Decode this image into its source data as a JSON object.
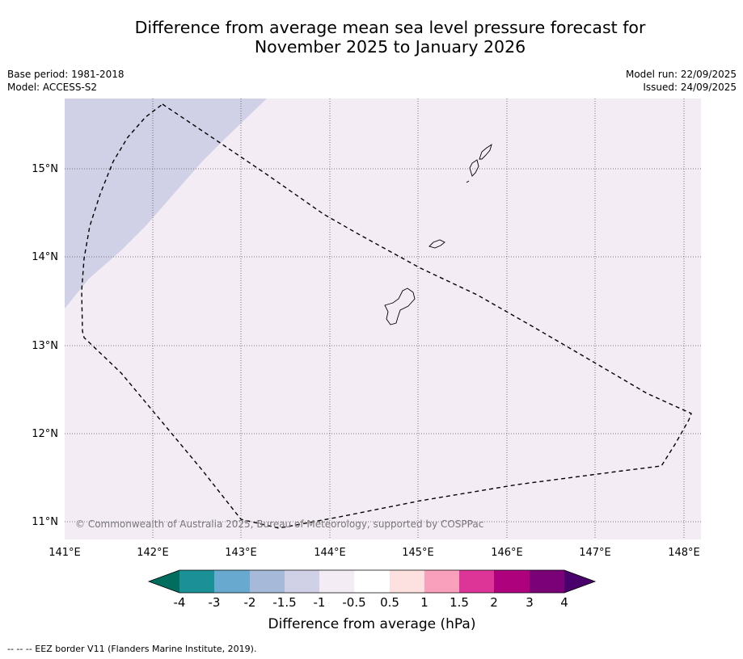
{
  "title": {
    "line1": "Difference from average mean sea level pressure forecast for",
    "line2": "November 2025 to January 2026"
  },
  "meta": {
    "base_period": "Base period: 1981-2018",
    "model": "Model: ACCESS-S2",
    "model_run": "Model run: 22/09/2025",
    "issued": "Issued: 24/09/2025"
  },
  "map": {
    "lon_labels": [
      "141°E",
      "142°E",
      "143°E",
      "144°E",
      "145°E",
      "146°E",
      "147°E",
      "148°E"
    ],
    "lat_labels": [
      "15°N",
      "14°N",
      "13°N",
      "12°N",
      "11°N"
    ],
    "copyright": "© Commonwealth of Australia 2025, Bureau of Meteorology, supported by COSPPac",
    "colors": {
      "background_anomaly": "#f4ecf5",
      "negative_anomaly": "#d0d1e6",
      "eez_line": "#000000",
      "gridline": "#555555"
    }
  },
  "colorbar": {
    "labels": [
      "-4",
      "-3",
      "-2",
      "-1.5",
      "-1",
      "-0.5",
      "0.5",
      "1",
      "1.5",
      "2",
      "3",
      "4"
    ],
    "colors": [
      "#006d5f",
      "#1b9096",
      "#67a9cf",
      "#a6b9d9",
      "#d0d1e6",
      "#f4ecf5",
      "#ffffff",
      "#fde0e0",
      "#f9a0bc",
      "#dd3497",
      "#ae017e",
      "#7a0177",
      "#49006a"
    ],
    "title": "Difference from average (hPa)"
  },
  "footer": {
    "eez_note": "--  --  -- EEZ border V11 (Flanders Marine Institute, 2019)."
  }
}
